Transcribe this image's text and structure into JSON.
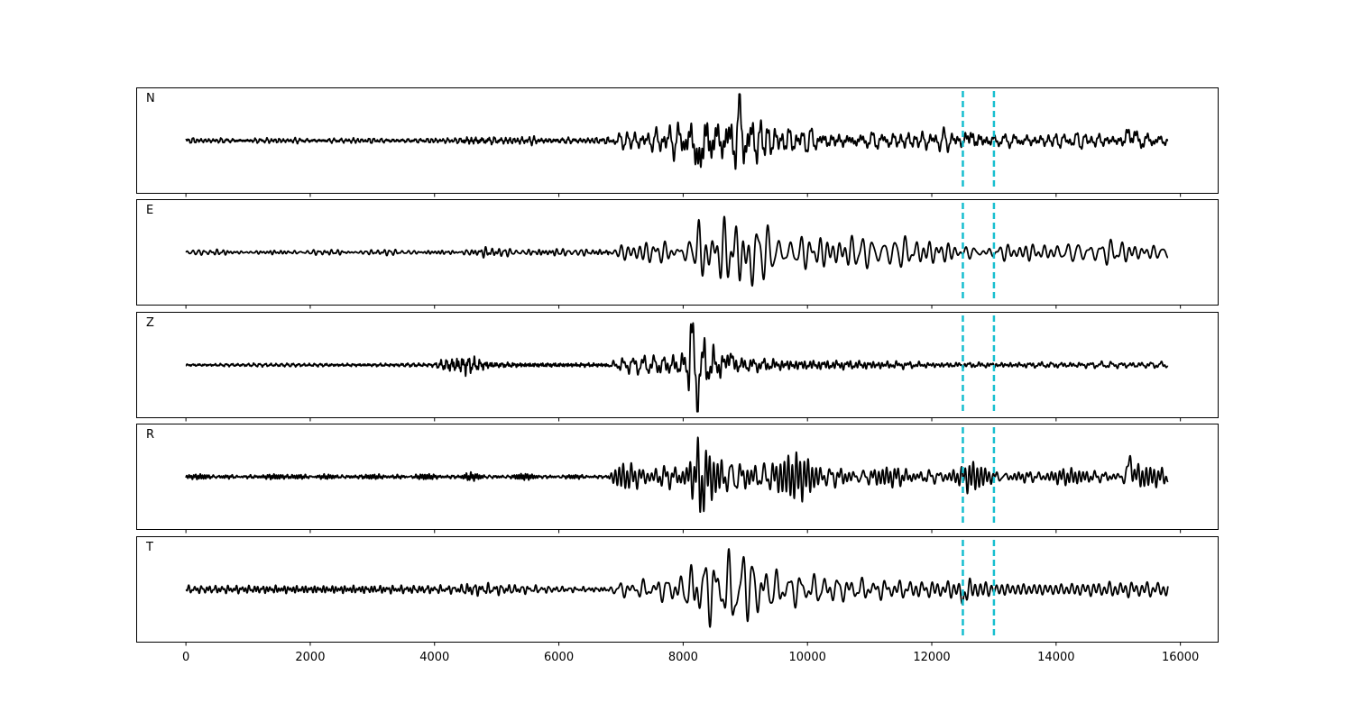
{
  "chart_data": {
    "type": "line",
    "title": "",
    "xlabel": "",
    "ylabel": "",
    "xlim": [
      -800,
      16600
    ],
    "x_ticks": [
      0,
      2000,
      4000,
      6000,
      8000,
      10000,
      12000,
      14000,
      16000
    ],
    "x_tick_labels": [
      "0",
      "2000",
      "4000",
      "6000",
      "8000",
      "10000",
      "12000",
      "14000",
      "16000"
    ],
    "x_range": [
      0,
      15800
    ],
    "ylim": [
      -1,
      1
    ],
    "grid": false,
    "line_color": "#000000",
    "marker_color": "#17becf",
    "markers": [
      12500,
      13000
    ],
    "panels": [
      {
        "label": "N",
        "trace_key": "N",
        "envelope": [
          [
            0,
            0.04
          ],
          [
            4400,
            0.04
          ],
          [
            4500,
            0.09
          ],
          [
            4800,
            0.08
          ],
          [
            5000,
            0.06
          ],
          [
            6800,
            0.05
          ],
          [
            7000,
            0.14
          ],
          [
            7500,
            0.17
          ],
          [
            8000,
            0.32
          ],
          [
            8200,
            0.5
          ],
          [
            8300,
            0.65
          ],
          [
            8600,
            0.4
          ],
          [
            8800,
            0.55
          ],
          [
            9000,
            0.48
          ],
          [
            9500,
            0.25
          ],
          [
            10000,
            0.18
          ],
          [
            11000,
            0.15
          ],
          [
            12500,
            0.15
          ],
          [
            12600,
            0.22
          ],
          [
            13000,
            0.12
          ],
          [
            14000,
            0.12
          ],
          [
            15000,
            0.12
          ],
          [
            15200,
            0.22
          ],
          [
            15500,
            0.14
          ],
          [
            15800,
            0.1
          ]
        ],
        "events": [
          {
            "t": 8250,
            "a": -0.55,
            "w": 40
          },
          {
            "t": 8900,
            "a": 0.4,
            "w": 40
          },
          {
            "t": 15200,
            "a": 0.2,
            "w": 50
          },
          {
            "t": 12620,
            "a": 0.12,
            "w": 40
          }
        ]
      },
      {
        "label": "E",
        "trace_key": "E",
        "envelope": [
          [
            0,
            0.04
          ],
          [
            4400,
            0.04
          ],
          [
            4500,
            0.1
          ],
          [
            4800,
            0.09
          ],
          [
            5000,
            0.06
          ],
          [
            6800,
            0.05
          ],
          [
            7000,
            0.18
          ],
          [
            7500,
            0.22
          ],
          [
            8000,
            0.3
          ],
          [
            8250,
            0.62
          ],
          [
            8400,
            0.5
          ],
          [
            8800,
            0.55
          ],
          [
            9000,
            0.55
          ],
          [
            9500,
            0.35
          ],
          [
            10000,
            0.32
          ],
          [
            11000,
            0.24
          ],
          [
            12000,
            0.22
          ],
          [
            12500,
            0.2
          ],
          [
            13000,
            0.18
          ],
          [
            14000,
            0.16
          ],
          [
            15000,
            0.18
          ],
          [
            15800,
            0.14
          ]
        ],
        "events": [
          {
            "t": 8250,
            "a": 0.5,
            "w": 40
          },
          {
            "t": 8290,
            "a": -0.42,
            "w": 40
          },
          {
            "t": 9050,
            "a": -0.35,
            "w": 40
          }
        ]
      },
      {
        "label": "Z",
        "trace_key": "Z",
        "envelope": [
          [
            0,
            0.02
          ],
          [
            4000,
            0.03
          ],
          [
            4100,
            0.07
          ],
          [
            4500,
            0.16
          ],
          [
            4700,
            0.1
          ],
          [
            5000,
            0.05
          ],
          [
            6800,
            0.04
          ],
          [
            7000,
            0.12
          ],
          [
            7500,
            0.14
          ],
          [
            8000,
            0.2
          ],
          [
            8150,
            0.65
          ],
          [
            8200,
            0.55
          ],
          [
            8400,
            0.35
          ],
          [
            8700,
            0.22
          ],
          [
            9000,
            0.14
          ],
          [
            10000,
            0.12
          ],
          [
            11000,
            0.1
          ],
          [
            12000,
            0.06
          ],
          [
            13000,
            0.06
          ],
          [
            15800,
            0.05
          ]
        ],
        "events": [
          {
            "t": 8150,
            "a": 0.65,
            "w": 45
          },
          {
            "t": 8200,
            "a": -0.68,
            "w": 45
          },
          {
            "t": 8750,
            "a": 0.2,
            "w": 45
          }
        ]
      },
      {
        "label": "R",
        "trace_key": "R",
        "envelope": [
          [
            0,
            0.04
          ],
          [
            4400,
            0.04
          ],
          [
            4500,
            0.08
          ],
          [
            4700,
            0.06
          ],
          [
            5000,
            0.04
          ],
          [
            6800,
            0.04
          ],
          [
            7000,
            0.18
          ],
          [
            7500,
            0.22
          ],
          [
            8000,
            0.3
          ],
          [
            8250,
            0.62
          ],
          [
            8400,
            0.5
          ],
          [
            8800,
            0.45
          ],
          [
            9000,
            0.42
          ],
          [
            9500,
            0.3
          ],
          [
            10000,
            0.28
          ],
          [
            11000,
            0.18
          ],
          [
            12000,
            0.17
          ],
          [
            12500,
            0.15
          ],
          [
            12600,
            0.22
          ],
          [
            13000,
            0.12
          ],
          [
            14000,
            0.12
          ],
          [
            15000,
            0.14
          ],
          [
            15200,
            0.3
          ],
          [
            15500,
            0.18
          ],
          [
            15800,
            0.14
          ]
        ],
        "events": [
          {
            "t": 8230,
            "a": 0.45,
            "w": 40
          },
          {
            "t": 8260,
            "a": -0.55,
            "w": 40
          },
          {
            "t": 15200,
            "a": 0.3,
            "w": 50
          }
        ]
      },
      {
        "label": "T",
        "trace_key": "T",
        "envelope": [
          [
            0,
            0.06
          ],
          [
            4400,
            0.06
          ],
          [
            4500,
            0.1
          ],
          [
            5000,
            0.09
          ],
          [
            6000,
            0.07
          ],
          [
            6800,
            0.07
          ],
          [
            7000,
            0.12
          ],
          [
            7500,
            0.16
          ],
          [
            8000,
            0.25
          ],
          [
            8200,
            0.52
          ],
          [
            8600,
            0.6
          ],
          [
            8900,
            0.65
          ],
          [
            9000,
            0.62
          ],
          [
            9300,
            0.42
          ],
          [
            9600,
            0.32
          ],
          [
            10000,
            0.3
          ],
          [
            11000,
            0.22
          ],
          [
            12000,
            0.2
          ],
          [
            12500,
            0.22
          ],
          [
            12600,
            0.28
          ],
          [
            13000,
            0.15
          ],
          [
            14000,
            0.12
          ],
          [
            15000,
            0.14
          ],
          [
            15800,
            0.12
          ]
        ],
        "events": [
          {
            "t": 8960,
            "a": 0.55,
            "w": 40
          },
          {
            "t": 8900,
            "a": -0.48,
            "w": 40
          },
          {
            "t": 12500,
            "a": -0.25,
            "w": 35
          }
        ]
      }
    ]
  }
}
